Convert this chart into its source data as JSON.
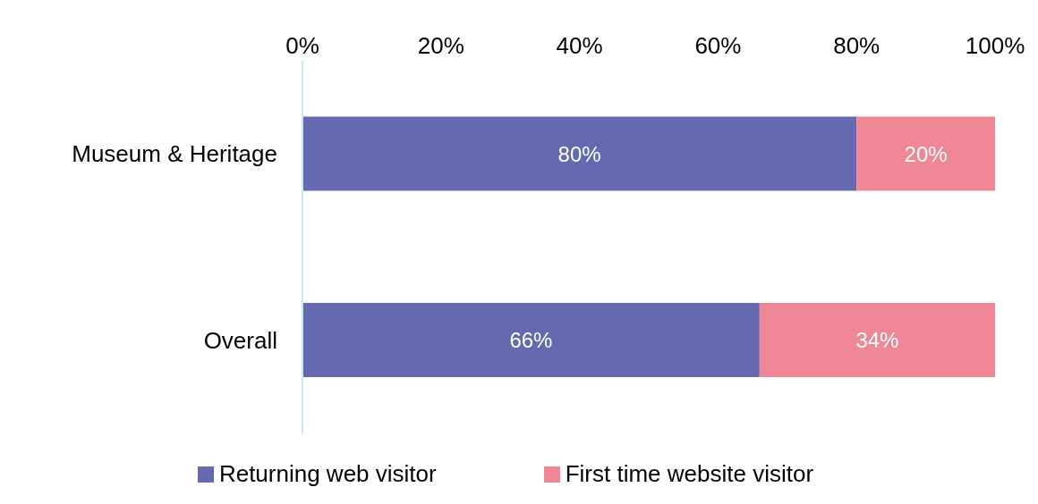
{
  "chart_data": {
    "type": "bar",
    "orientation": "horizontal",
    "stacked": true,
    "categories": [
      "Museum & Heritage",
      "Overall"
    ],
    "series": [
      {
        "name": "Returning web visitor",
        "color": "#6469b0",
        "values": [
          80,
          66
        ],
        "value_labels": [
          "80%",
          "66%"
        ]
      },
      {
        "name": "First time website visitor",
        "color": "#f08796",
        "values": [
          20,
          34
        ],
        "value_labels": [
          "20%",
          "34%"
        ]
      }
    ],
    "xlim": [
      0,
      100
    ],
    "xticks": [
      {
        "value": 0,
        "label": "0%"
      },
      {
        "value": 20,
        "label": "20%"
      },
      {
        "value": 40,
        "label": "40%"
      },
      {
        "value": 60,
        "label": "60%"
      },
      {
        "value": 80,
        "label": "80%"
      },
      {
        "value": 100,
        "label": "100%"
      }
    ],
    "grid": false,
    "legend": "bottom"
  }
}
